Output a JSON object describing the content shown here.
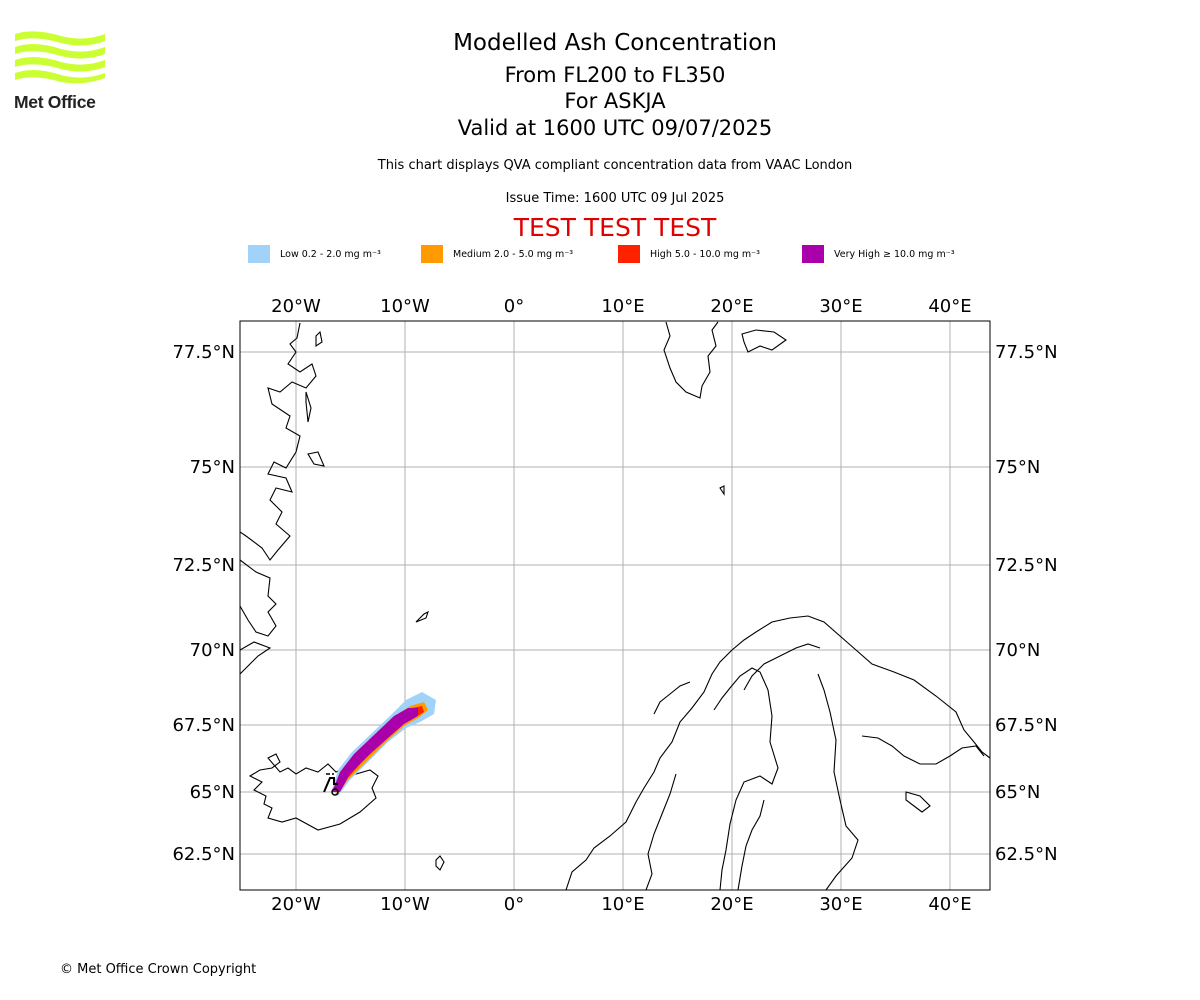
{
  "logo": {
    "text": "Met Office",
    "color": "#ccff33"
  },
  "title": {
    "main": "Modelled Ash Concentration",
    "levels": "From FL200 to FL350",
    "volcano": "For ASKJA",
    "valid": "Valid at 1600 UTC 09/07/2025"
  },
  "description": "This chart displays QVA compliant concentration data from VAAC London",
  "issue_time": "Issue Time: 1600 UTC 09 Jul 2025",
  "test_banner": "TEST TEST TEST",
  "legend": [
    {
      "label": "Low 0.2 - 2.0 mg m⁻³",
      "color": "#a0d2fa"
    },
    {
      "label": "Medium 2.0 - 5.0 mg m⁻³",
      "color": "#ff9a00"
    },
    {
      "label": "High 5.0 - 10.0 mg m⁻³",
      "color": "#ff2200"
    },
    {
      "label": "Very High ≥ 10.0 mg m⁻³",
      "color": "#aa00aa"
    }
  ],
  "map": {
    "lon_ticks": [
      "20°W",
      "10°W",
      "0°",
      "10°E",
      "20°E",
      "30°E",
      "40°E"
    ],
    "lat_ticks": [
      "77.5°N",
      "75°N",
      "72.5°N",
      "70°N",
      "67.5°N",
      "65°N",
      "62.5°N"
    ],
    "volcano_marker": "ASKJA"
  },
  "copyright": "© Met Office Crown Copyright"
}
